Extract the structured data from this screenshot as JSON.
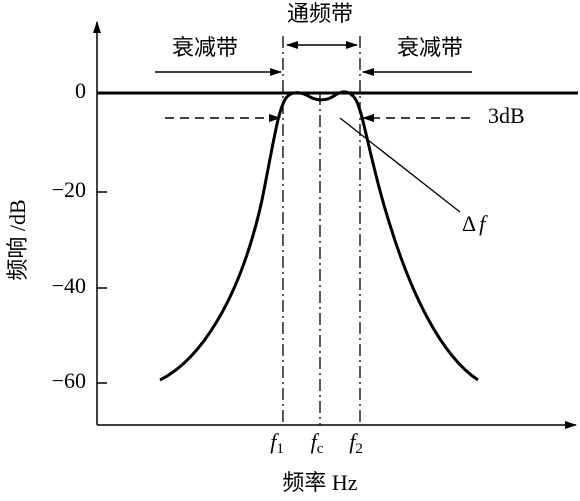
{
  "y_axis": {
    "label": "频响 /dB",
    "ticks": [
      "0",
      "−20",
      "−40",
      "−60"
    ]
  },
  "x_axis": {
    "label": "频率 Hz",
    "ticks": [
      {
        "base": "f",
        "sub": "1"
      },
      {
        "base": "f",
        "sub": "c"
      },
      {
        "base": "f",
        "sub": "2"
      }
    ]
  },
  "annotations": {
    "passband": "通频带",
    "stopband_left": "衰减带",
    "stopband_right": "衰减带",
    "level": "3dB",
    "bandwidth": {
      "delta": "Δ",
      "symbol": "f"
    }
  }
}
